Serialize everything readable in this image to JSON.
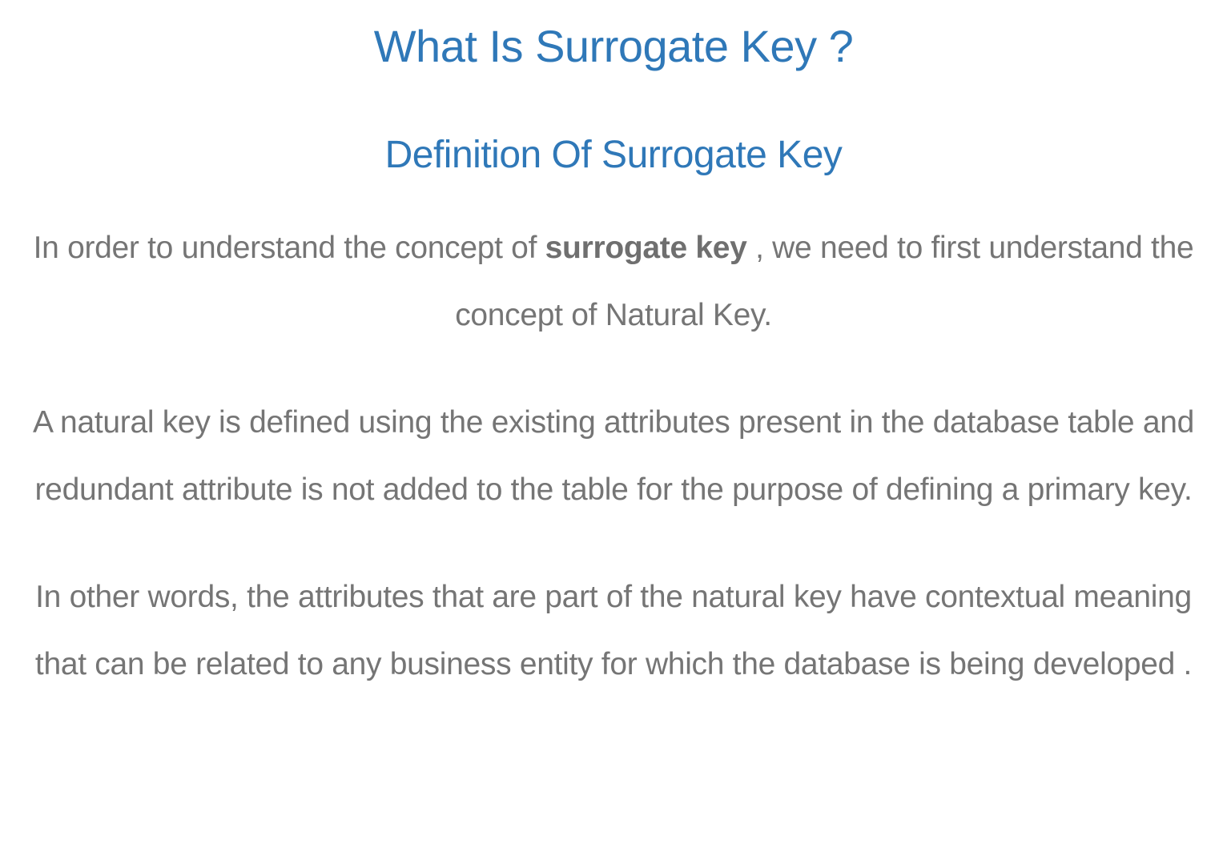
{
  "article": {
    "title": "What Is Surrogate Key ?",
    "subtitle": "Definition Of Surrogate Key",
    "paragraph1": {
      "before": "In order to understand the concept of ",
      "bold": "surrogate key",
      "after": " , we need to first understand the concept of Natural Key."
    },
    "paragraph2": "A natural key is defined using the existing attributes present in the database table and redundant attribute is not added to the table for the purpose of defining a primary key.",
    "paragraph3": "In other words, the attributes that are part of the natural key have contextual meaning that can be related to any business entity for which the database is being developed ."
  },
  "colors": {
    "heading": "#2f78b8",
    "body_text": "#757575"
  }
}
